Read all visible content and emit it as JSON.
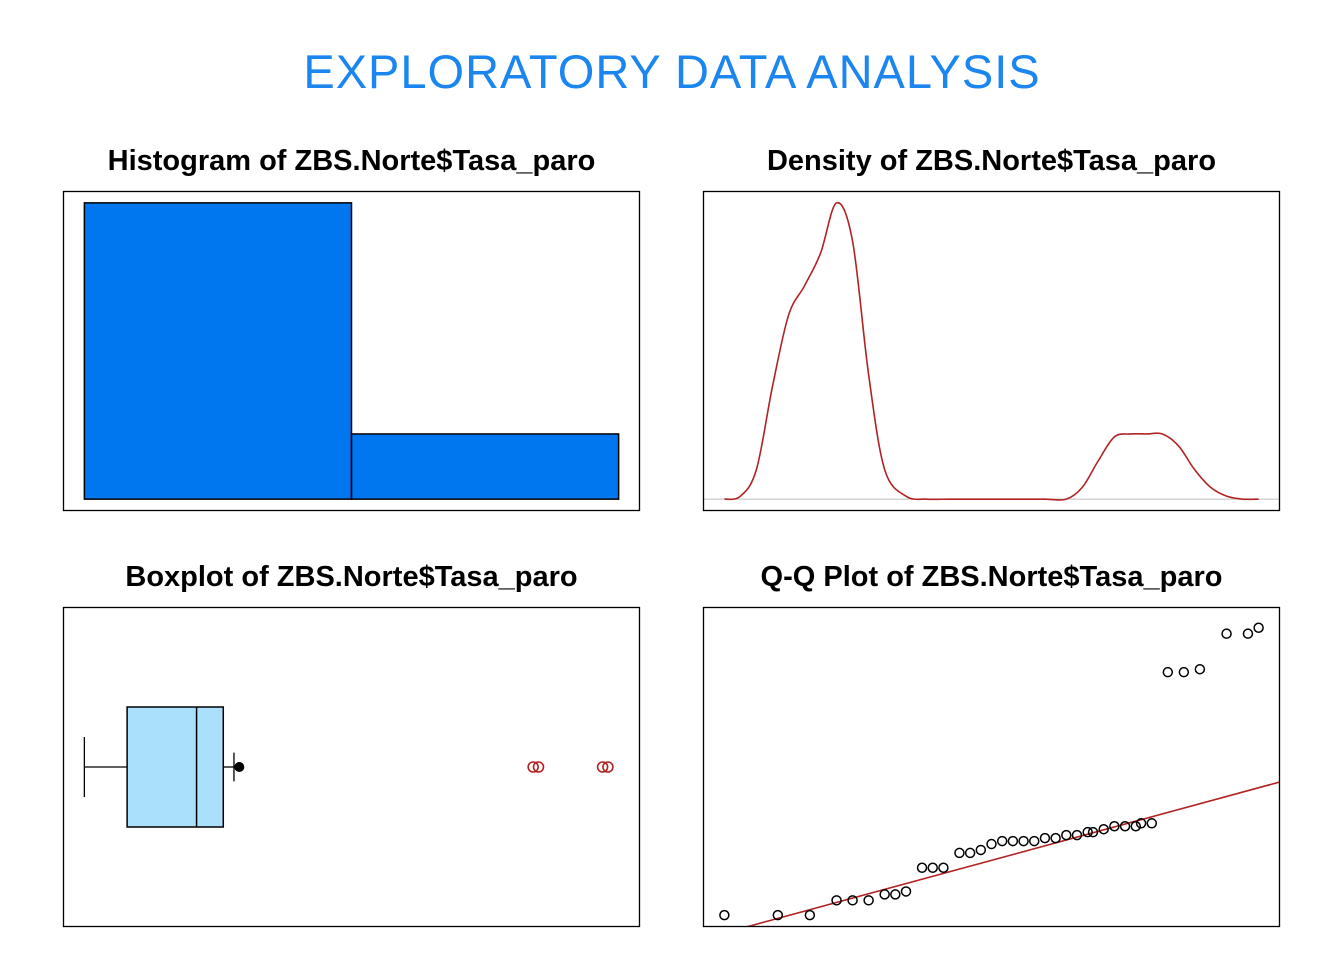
{
  "page": {
    "title": "EXPLORATORY  DATA  ANALYSIS"
  },
  "colors": {
    "title": "#1b86f0",
    "hist_fill": "#0077ee",
    "box_fill": "#abe0fd",
    "curve": "#b22222",
    "outlier": "#b22222"
  },
  "chart_data": [
    {
      "id": "histogram",
      "type": "bar",
      "title": "Histogram of ZBS.Norte$Tasa_paro",
      "bins": [
        {
          "from": 0,
          "to": 1,
          "value": 1.0
        },
        {
          "from": 1,
          "to": 2,
          "value": 0.22
        }
      ],
      "xlim": [
        -0.08,
        2.08
      ],
      "ylim": [
        -0.04,
        1.04
      ],
      "axes": "none"
    },
    {
      "id": "density",
      "type": "line",
      "title": "Density of ZBS.Norte$Tasa_paro",
      "xlim": [
        -0.04,
        1.04
      ],
      "ylim": [
        -0.04,
        1.04
      ],
      "baseline": 0,
      "x": [
        0.0,
        0.03,
        0.06,
        0.09,
        0.12,
        0.15,
        0.18,
        0.21,
        0.24,
        0.27,
        0.3,
        0.34,
        0.38,
        0.42,
        0.45,
        0.48,
        0.52,
        0.56,
        0.6,
        0.64,
        0.67,
        0.7,
        0.73,
        0.76,
        0.79,
        0.82,
        0.85,
        0.88,
        0.91,
        0.94,
        0.97,
        1.0
      ],
      "y": [
        0.0,
        0.01,
        0.1,
        0.38,
        0.62,
        0.72,
        0.83,
        1.0,
        0.87,
        0.42,
        0.1,
        0.01,
        0.0,
        0.0,
        0.0,
        0.0,
        0.0,
        0.0,
        0.0,
        0.0,
        0.04,
        0.13,
        0.21,
        0.22,
        0.22,
        0.22,
        0.18,
        0.1,
        0.04,
        0.01,
        0.0,
        0.0
      ],
      "axes": "none"
    },
    {
      "id": "boxplot",
      "type": "box",
      "title": "Boxplot of ZBS.Norte$Tasa_paro",
      "xlim": [
        -0.04,
        1.04
      ],
      "ylim": [
        0,
        1
      ],
      "whisker_low": 0.0,
      "q1": 0.08,
      "median": 0.21,
      "q3": 0.26,
      "whisker_high": 0.28,
      "mean": 0.29,
      "outliers": [
        0.84,
        0.85,
        0.97,
        0.98
      ],
      "axes": "none"
    },
    {
      "id": "qqplot",
      "type": "scatter",
      "title": "Q-Q Plot of ZBS.Norte$Tasa_paro",
      "xlim": [
        -0.04,
        1.04
      ],
      "ylim": [
        -0.04,
        1.04
      ],
      "x": [
        0.0,
        0.1,
        0.16,
        0.21,
        0.24,
        0.27,
        0.3,
        0.32,
        0.34,
        0.37,
        0.39,
        0.41,
        0.44,
        0.46,
        0.48,
        0.5,
        0.52,
        0.54,
        0.56,
        0.58,
        0.6,
        0.62,
        0.64,
        0.66,
        0.68,
        0.69,
        0.71,
        0.73,
        0.75,
        0.77,
        0.78,
        0.8,
        0.83,
        0.86,
        0.89,
        0.94,
        0.98,
        1.0
      ],
      "y": [
        0.0,
        0.0,
        0.0,
        0.05,
        0.05,
        0.05,
        0.07,
        0.07,
        0.08,
        0.16,
        0.16,
        0.16,
        0.21,
        0.21,
        0.22,
        0.24,
        0.25,
        0.25,
        0.25,
        0.25,
        0.26,
        0.26,
        0.27,
        0.27,
        0.28,
        0.28,
        0.29,
        0.3,
        0.3,
        0.3,
        0.31,
        0.31,
        0.82,
        0.82,
        0.83,
        0.95,
        0.95,
        0.97
      ],
      "fit_line": {
        "slope": 0.49,
        "intercept": -0.06
      },
      "axes": "none"
    }
  ]
}
